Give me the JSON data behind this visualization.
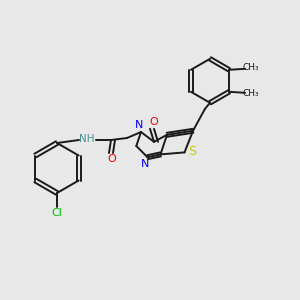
{
  "background_color": "#e8e8e8",
  "atom_colors": {
    "C": "#1a1a1a",
    "N": "#0000ff",
    "O": "#ff0000",
    "S": "#cccc00",
    "Cl": "#00bb00",
    "H": "#4a9090",
    "NH": "#4a9090"
  },
  "bond_color": "#1a1a1a",
  "bond_lw": 1.4,
  "figsize": [
    3.0,
    3.0
  ],
  "dpi": 100
}
